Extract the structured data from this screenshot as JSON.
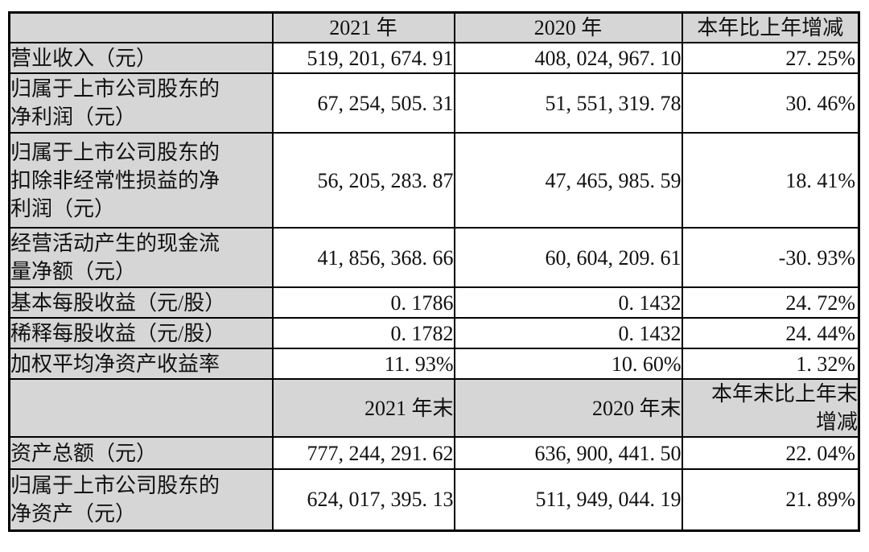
{
  "table": {
    "section_annual": {
      "columns": [
        "",
        "2021 年",
        "2020 年",
        "本年比上年增减"
      ],
      "rows": [
        {
          "label": "营业收入（元）",
          "y2021": "519, 201, 674. 91",
          "y2020": "408, 024, 967. 10",
          "change": "27. 25%"
        },
        {
          "label": "归属于上市公司股东的\n净利润（元）",
          "y2021": "67, 254, 505. 31",
          "y2020": "51, 551, 319. 78",
          "change": "30. 46%"
        },
        {
          "label": "归属于上市公司股东的\n扣除非经常性损益的净\n利润（元）",
          "y2021": "56, 205, 283. 87",
          "y2020": "47, 465, 985. 59",
          "change": "18. 41%"
        },
        {
          "label": "经营活动产生的现金流\n量净额（元）",
          "y2021": "41, 856, 368. 66",
          "y2020": "60, 604, 209. 61",
          "change": "-30. 93%"
        },
        {
          "label": "基本每股收益（元/股）",
          "y2021": "0. 1786",
          "y2020": "0. 1432",
          "change": "24. 72%"
        },
        {
          "label": "稀释每股收益（元/股）",
          "y2021": "0. 1782",
          "y2020": "0. 1432",
          "change": "24. 44%"
        },
        {
          "label": "加权平均净资产收益率",
          "y2021": "11. 93%",
          "y2020": "10. 60%",
          "change": "1. 32%"
        }
      ]
    },
    "section_yearend": {
      "columns": [
        "",
        "2021 年末",
        "2020 年末",
        "本年末比上年末\n增减"
      ],
      "rows": [
        {
          "label": "资产总额（元）",
          "y2021": "777, 244, 291. 62",
          "y2020": "636, 900, 441. 50",
          "change": "22. 04%"
        },
        {
          "label": "归属于上市公司股东的\n净资产（元）",
          "y2021": "624, 017, 395. 13",
          "y2020": "511, 949, 044. 19",
          "change": "21. 89%"
        }
      ]
    }
  },
  "colors": {
    "header_bg": "#d6d6d6",
    "label_bg": "#d6d6d6",
    "border": "#000000",
    "text": "#111111",
    "page_bg": "#ffffff"
  }
}
